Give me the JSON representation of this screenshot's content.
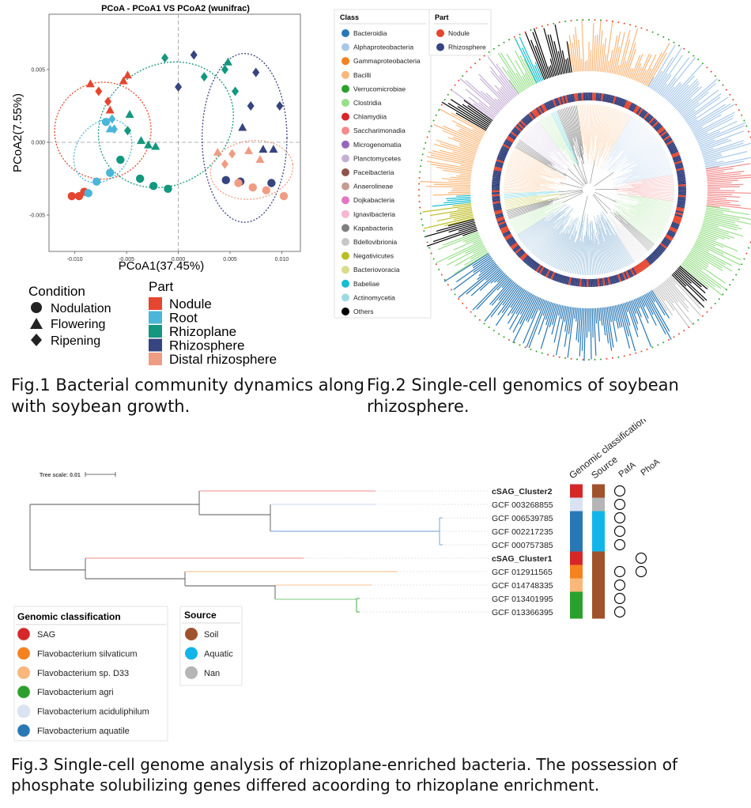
{
  "fig1": {
    "chart_data": {
      "type": "scatter",
      "title": "PCoA - PCoA1 VS PCoA2 (wunifrac)",
      "xlabel": "PCoA1(37.45%)",
      "ylabel": "PCoA2(7.55%)",
      "xlim": [
        -0.0125,
        0.0118
      ],
      "ylim": [
        -0.0075,
        0.0088
      ],
      "xticks": [
        -0.01,
        -0.005,
        0.0,
        0.005,
        0.01
      ],
      "xtick_labels": [
        "-0.010",
        "-0.005",
        "0.000",
        "0.005",
        "0.010"
      ],
      "yticks": [
        -0.005,
        0.0,
        0.005
      ],
      "ytick_labels": [
        "-0.005",
        "0.000",
        "0.005"
      ],
      "grid": false,
      "points": [
        {
          "x": -0.0085,
          "y": 0.004,
          "part": "Nodule",
          "cond": "Flowering"
        },
        {
          "x": -0.0077,
          "y": 0.0035,
          "part": "Nodule",
          "cond": "Ripening"
        },
        {
          "x": -0.0053,
          "y": 0.0042,
          "part": "Nodule",
          "cond": "Flowering"
        },
        {
          "x": -0.0049,
          "y": 0.0046,
          "part": "Nodule",
          "cond": "Flowering"
        },
        {
          "x": -0.0103,
          "y": -0.0037,
          "part": "Nodule",
          "cond": "Nodulation"
        },
        {
          "x": -0.0096,
          "y": -0.0037,
          "part": "Nodule",
          "cond": "Nodulation"
        },
        {
          "x": -0.0091,
          "y": -0.0034,
          "part": "Nodule",
          "cond": "Nodulation"
        },
        {
          "x": -0.0068,
          "y": 0.0028,
          "part": "Nodule",
          "cond": "Ripening"
        },
        {
          "x": -0.0066,
          "y": 0.0022,
          "part": "Nodule",
          "cond": "Flowering"
        },
        {
          "x": -0.007,
          "y": 0.0014,
          "part": "Root",
          "cond": "Nodulation"
        },
        {
          "x": -0.0064,
          "y": 0.0016,
          "part": "Root",
          "cond": "Ripening"
        },
        {
          "x": -0.0066,
          "y": 0.0009,
          "part": "Root",
          "cond": "Flowering"
        },
        {
          "x": -0.0087,
          "y": -0.0035,
          "part": "Root",
          "cond": "Nodulation"
        },
        {
          "x": -0.0079,
          "y": -0.0027,
          "part": "Root",
          "cond": "Nodulation"
        },
        {
          "x": -0.0066,
          "y": -0.0021,
          "part": "Root",
          "cond": "Nodulation"
        },
        {
          "x": -0.0062,
          "y": 0.0009,
          "part": "Root",
          "cond": "Ripening"
        },
        {
          "x": -0.0047,
          "y": 0.0019,
          "part": "Rhizoplane",
          "cond": "Flowering"
        },
        {
          "x": -0.0049,
          "y": 0.0008,
          "part": "Rhizoplane",
          "cond": "Ripening"
        },
        {
          "x": -0.0056,
          "y": -0.0012,
          "part": "Rhizoplane",
          "cond": "Nodulation"
        },
        {
          "x": -0.0036,
          "y": 0.0001,
          "part": "Rhizoplane",
          "cond": "Flowering"
        },
        {
          "x": -0.0029,
          "y": -0.0002,
          "part": "Rhizoplane",
          "cond": "Flowering"
        },
        {
          "x": -0.0022,
          "y": -0.0003,
          "part": "Rhizoplane",
          "cond": "Flowering"
        },
        {
          "x": -0.0037,
          "y": -0.0025,
          "part": "Rhizoplane",
          "cond": "Nodulation"
        },
        {
          "x": -0.0024,
          "y": -0.003,
          "part": "Rhizoplane",
          "cond": "Nodulation"
        },
        {
          "x": -0.001,
          "y": -0.0032,
          "part": "Rhizoplane",
          "cond": "Nodulation"
        },
        {
          "x": -0.0013,
          "y": 0.0058,
          "part": "Rhizoplane",
          "cond": "Ripening"
        },
        {
          "x": 0.0025,
          "y": 0.0045,
          "part": "Rhizoplane",
          "cond": "Ripening"
        },
        {
          "x": 0.0045,
          "y": 0.005,
          "part": "Rhizoplane",
          "cond": "Ripening"
        },
        {
          "x": 0.0055,
          "y": 0.0035,
          "part": "Rhizoplane",
          "cond": "Ripening"
        },
        {
          "x": 0.0048,
          "y": 0.0055,
          "part": "Rhizoplane",
          "cond": "Flowering"
        },
        {
          "x": 0.0,
          "y": 0.0038,
          "part": "Rhizosphere",
          "cond": "Ripening"
        },
        {
          "x": 0.0015,
          "y": 0.006,
          "part": "Rhizosphere",
          "cond": "Ripening"
        },
        {
          "x": 0.007,
          "y": 0.0025,
          "part": "Rhizosphere",
          "cond": "Ripening"
        },
        {
          "x": 0.0075,
          "y": 0.0048,
          "part": "Rhizosphere",
          "cond": "Ripening"
        },
        {
          "x": 0.0082,
          "y": -0.0005,
          "part": "Rhizosphere",
          "cond": "Flowering"
        },
        {
          "x": 0.0092,
          "y": -0.0005,
          "part": "Rhizosphere",
          "cond": "Flowering"
        },
        {
          "x": 0.0046,
          "y": -0.0026,
          "part": "Rhizosphere",
          "cond": "Nodulation"
        },
        {
          "x": 0.006,
          "y": -0.0027,
          "part": "Rhizosphere",
          "cond": "Nodulation"
        },
        {
          "x": 0.009,
          "y": -0.0028,
          "part": "Rhizosphere",
          "cond": "Nodulation"
        },
        {
          "x": 0.0098,
          "y": 0.0025,
          "part": "Rhizosphere",
          "cond": "Ripening"
        },
        {
          "x": 0.0062,
          "y": 0.001,
          "part": "Rhizosphere",
          "cond": "Flowering"
        },
        {
          "x": 0.0038,
          "y": -0.0007,
          "part": "Distal rhizosphere",
          "cond": "Flowering"
        },
        {
          "x": 0.0052,
          "y": -0.0008,
          "part": "Distal rhizosphere",
          "cond": "Ripening"
        },
        {
          "x": 0.0068,
          "y": -0.0006,
          "part": "Distal rhizosphere",
          "cond": "Flowering"
        },
        {
          "x": 0.0058,
          "y": -0.0028,
          "part": "Distal rhizosphere",
          "cond": "Nodulation"
        },
        {
          "x": 0.0072,
          "y": -0.0031,
          "part": "Distal rhizosphere",
          "cond": "Nodulation"
        },
        {
          "x": 0.0085,
          "y": -0.0033,
          "part": "Distal rhizosphere",
          "cond": "Nodulation"
        },
        {
          "x": 0.0102,
          "y": -0.0037,
          "part": "Distal rhizosphere",
          "cond": "Nodulation"
        },
        {
          "x": 0.0079,
          "y": -0.0012,
          "part": "Distal rhizosphere",
          "cond": "Flowering"
        },
        {
          "x": 0.0045,
          "y": -0.0015,
          "part": "Distal rhizosphere",
          "cond": "Ripening"
        }
      ],
      "ellipses": [
        {
          "part": "Nodule",
          "cx": -0.0073,
          "cy": 0.0008,
          "rx": 0.0047,
          "ry": 0.0033,
          "rot": -55
        },
        {
          "part": "Root",
          "cx": -0.0073,
          "cy": -0.0006,
          "rx": 0.0033,
          "ry": 0.0018,
          "rot": -55
        },
        {
          "part": "Rhizoplane",
          "cx": -0.0012,
          "cy": 0.0012,
          "rx": 0.0068,
          "ry": 0.0041,
          "rot": -32
        },
        {
          "part": "Rhizosphere",
          "cx": 0.0064,
          "cy": 0.0003,
          "rx": 0.0041,
          "ry": 0.0058,
          "rot": 0
        },
        {
          "part": "Distal rhizosphere",
          "cx": 0.0071,
          "cy": -0.0019,
          "rx": 0.004,
          "ry": 0.002,
          "rot": -8
        }
      ]
    },
    "legend": {
      "condition_title": "Condition",
      "conditions": [
        {
          "name": "Nodulation",
          "shape": "circle"
        },
        {
          "name": "Flowering",
          "shape": "triangle"
        },
        {
          "name": "Ripening",
          "shape": "diamond"
        }
      ],
      "part_title": "Part",
      "parts": [
        {
          "name": "Nodule",
          "color": "#E5462F"
        },
        {
          "name": "Root",
          "color": "#4BB6D8"
        },
        {
          "name": "Rhizoplane",
          "color": "#13977E"
        },
        {
          "name": "Rhizosphere",
          "color": "#36447F"
        },
        {
          "name": "Distal rhizosphere",
          "color": "#EE9D83"
        }
      ]
    },
    "caption": "Fig.1 Bacterial community dynamics along with soybean growth."
  },
  "fig2": {
    "class_legend_title": "Class",
    "classes": [
      {
        "name": "Bacteroidia",
        "color": "#2878B5"
      },
      {
        "name": "Alphaproteobacteria",
        "color": "#A8C8E8"
      },
      {
        "name": "Gammaproteobacteria",
        "color": "#F5821F"
      },
      {
        "name": "Bacilli",
        "color": "#F9B77A"
      },
      {
        "name": "Verrucomicrobiae",
        "color": "#2CA02C"
      },
      {
        "name": "Clostridia",
        "color": "#98DF8A"
      },
      {
        "name": "Chlamydiia",
        "color": "#D62728"
      },
      {
        "name": "Saccharimonadia",
        "color": "#F28B8A"
      },
      {
        "name": "Microgenomatia",
        "color": "#9467BD"
      },
      {
        "name": "Planctomycetes",
        "color": "#C5B0D5"
      },
      {
        "name": "Paceibacteria",
        "color": "#8C564B"
      },
      {
        "name": "Anaerolineae",
        "color": "#C49C94"
      },
      {
        "name": "Dojkabacteria",
        "color": "#E377C2"
      },
      {
        "name": "Ignavibacteria",
        "color": "#F7B6D2"
      },
      {
        "name": "Kapabacteria",
        "color": "#7F7F7F"
      },
      {
        "name": "Bdellovibrionia",
        "color": "#C7C7C7"
      },
      {
        "name": "Negativicutes",
        "color": "#BCBD22"
      },
      {
        "name": "Bacteriovoracia",
        "color": "#DBDB8D"
      },
      {
        "name": "Babeliae",
        "color": "#17BECF"
      },
      {
        "name": "Actinomycetia",
        "color": "#9EDAE5"
      },
      {
        "name": "Others",
        "color": "#000000"
      }
    ],
    "part_legend_title": "Part",
    "parts": [
      {
        "name": "Nodule",
        "color": "#E5462F"
      },
      {
        "name": "Rhizosphere",
        "color": "#36447F"
      }
    ],
    "caption": "Fig.2 Single-cell genomics of soybean rhizosphere."
  },
  "fig3": {
    "tree_scale": "Tree scale: 0.01",
    "leaves": [
      {
        "name": "cSAG_Cluster2",
        "bold": true,
        "class_color": "#D62728",
        "source_color": "#A0522D",
        "pafa": true,
        "phoa": false
      },
      {
        "name": "GCF 003268855",
        "bold": false,
        "class_color": "#D9E3F3",
        "source_color": "#B5B5B5",
        "pafa": true,
        "phoa": false
      },
      {
        "name": "GCF 006539785",
        "bold": false,
        "class_color": "#2878B5",
        "source_color": "#12B5EA",
        "pafa": true,
        "phoa": false
      },
      {
        "name": "GCF 002217235",
        "bold": false,
        "class_color": "#2878B5",
        "source_color": "#12B5EA",
        "pafa": true,
        "phoa": false
      },
      {
        "name": "GCF 000757385",
        "bold": false,
        "class_color": "#2878B5",
        "source_color": "#12B5EA",
        "pafa": true,
        "phoa": false
      },
      {
        "name": "cSAG_Cluster1",
        "bold": true,
        "class_color": "#D62728",
        "source_color": "#A0522D",
        "pafa": false,
        "phoa": true
      },
      {
        "name": "GCF 012911565",
        "bold": false,
        "class_color": "#F5821F",
        "source_color": "#A0522D",
        "pafa": true,
        "phoa": true
      },
      {
        "name": "GCF 014748335",
        "bold": false,
        "class_color": "#F9B77A",
        "source_color": "#A0522D",
        "pafa": true,
        "phoa": false
      },
      {
        "name": "GCF 013401995",
        "bold": false,
        "class_color": "#2CA02C",
        "source_color": "#A0522D",
        "pafa": true,
        "phoa": false
      },
      {
        "name": "GCF 013366395",
        "bold": false,
        "class_color": "#2CA02C",
        "source_color": "#A0522D",
        "pafa": true,
        "phoa": false
      }
    ],
    "column_headers": [
      "Genomic classification",
      "Source",
      "PafA",
      "PhoA"
    ],
    "genomic_legend_title": "Genomic classification",
    "genomic_classes": [
      {
        "name": "SAG",
        "color": "#D62728"
      },
      {
        "name": "Flavobacterium silvaticum",
        "color": "#F5821F"
      },
      {
        "name": "Flavobacterium sp. D33",
        "color": "#F9B77A"
      },
      {
        "name": "Flavobacterium agri",
        "color": "#2CA02C"
      },
      {
        "name": "Flavobacterium aciduliphilum",
        "color": "#D9E3F3"
      },
      {
        "name": "Flavobacterium aquatile",
        "color": "#2878B5"
      }
    ],
    "source_legend_title": "Source",
    "sources": [
      {
        "name": "Soil",
        "color": "#A0522D"
      },
      {
        "name": "Aquatic",
        "color": "#12B5EA"
      },
      {
        "name": "Nan",
        "color": "#B5B5B5"
      }
    ],
    "caption": "Fig.3 Single-cell genome analysis of rhizoplane-enriched bacteria. The possession of phosphate solubilizing genes differed acoording to rhizoplane enrichment."
  }
}
